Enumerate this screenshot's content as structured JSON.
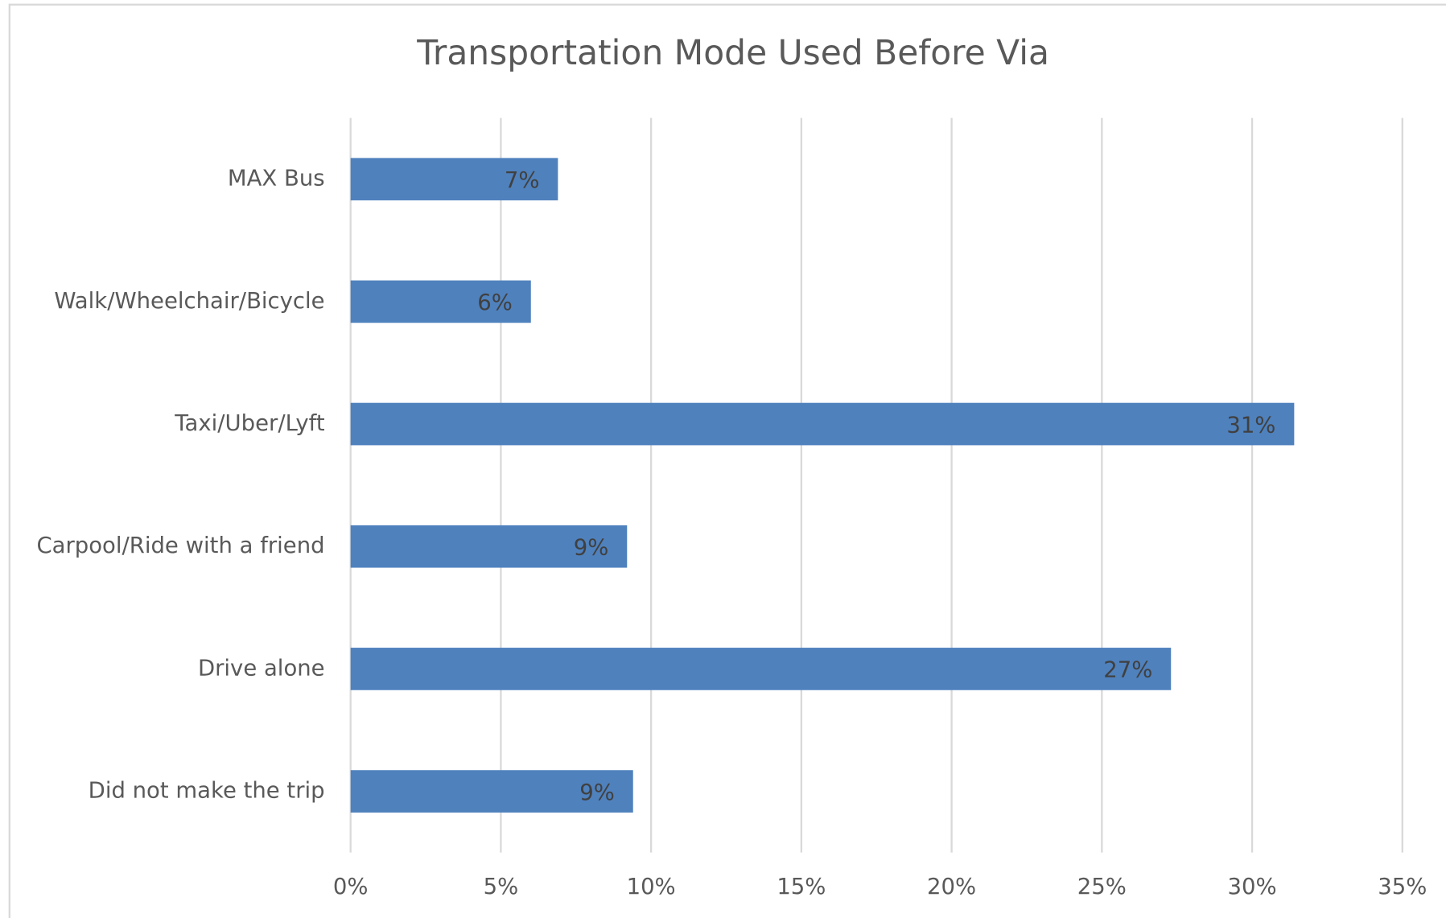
{
  "chart_data": {
    "type": "bar",
    "orientation": "horizontal",
    "title": "Transportation Mode Used Before Via",
    "categories": [
      "MAX Bus",
      "Walk/Wheelchair/Bicycle",
      "Taxi/Uber/Lyft",
      "Carpool/Ride with a friend",
      "Drive alone",
      "Did not make the trip"
    ],
    "values": [
      6.9,
      6.0,
      31.4,
      9.2,
      27.3,
      9.4
    ],
    "value_labels": [
      "7%",
      "6%",
      "31%",
      "9%",
      "27%",
      "9%"
    ],
    "color": "#4f81bd",
    "xlim": [
      0,
      35
    ],
    "xticks": [
      {
        "value": 0,
        "label": "0%"
      },
      {
        "value": 5,
        "label": "5%"
      },
      {
        "value": 10,
        "label": "10%"
      },
      {
        "value": 15,
        "label": "15%"
      },
      {
        "value": 20,
        "label": "20%"
      },
      {
        "value": 25,
        "label": "25%"
      },
      {
        "value": 30,
        "label": "30%"
      },
      {
        "value": 35,
        "label": "35%"
      }
    ],
    "grid": true
  }
}
